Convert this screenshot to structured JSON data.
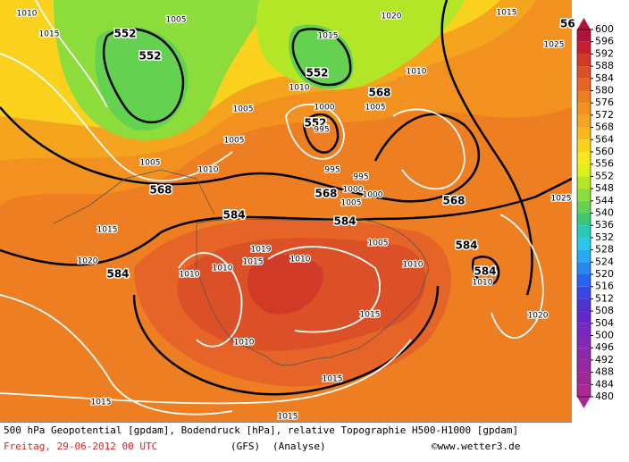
{
  "map": {
    "geopotential_labels": [
      "552",
      "552",
      "552",
      "552",
      "568",
      "568",
      "568",
      "568",
      "584",
      "584",
      "584",
      "584",
      "584"
    ],
    "pressure_labels": [
      "1010",
      "1015",
      "1005",
      "1020",
      "1015",
      "1015",
      "1010",
      "1025",
      "1010",
      "1005",
      "1005",
      "1000",
      "995",
      "1005",
      "1005",
      "1010",
      "995",
      "995",
      "1000",
      "1000",
      "1005",
      "1025",
      "1015",
      "1019",
      "1005",
      "1020",
      "1015",
      "1010",
      "1010",
      "1010",
      "1010",
      "1010",
      "1015",
      "1020",
      "1010",
      "1015",
      "1015",
      "1015"
    ],
    "clipped_label": "56"
  },
  "colorbar": {
    "labels": [
      600,
      596,
      592,
      588,
      584,
      580,
      576,
      572,
      568,
      564,
      560,
      556,
      552,
      548,
      544,
      540,
      536,
      532,
      528,
      524,
      520,
      516,
      512,
      508,
      504,
      500,
      496,
      492,
      488,
      484,
      480
    ],
    "colors": [
      "#b0143c",
      "#c81e2d",
      "#d23a28",
      "#dc5028",
      "#e66428",
      "#ee7e22",
      "#f29020",
      "#f5a41e",
      "#f8b81e",
      "#fad21e",
      "#f8e61e",
      "#dcf01e",
      "#b4e628",
      "#8cdc3c",
      "#64d250",
      "#3cc878",
      "#28c8b4",
      "#28c8e6",
      "#28aaf0",
      "#2888f0",
      "#2864f0",
      "#3c46e6",
      "#5032d2",
      "#6428c8",
      "#7828be",
      "#8228b4",
      "#8c28aa",
      "#9628a0",
      "#a02896",
      "#aa2896"
    ]
  },
  "footer": {
    "description": "500 hPa Geopotential [gpdam], Bodendruck [hPa], relative Topographie H500-H1000 [gpdam]",
    "date": "Freitag, 29-06-2012  00 UTC",
    "model": "(GFS)",
    "analysis": "(Analyse)",
    "credit": "©www.wetter3.de"
  }
}
